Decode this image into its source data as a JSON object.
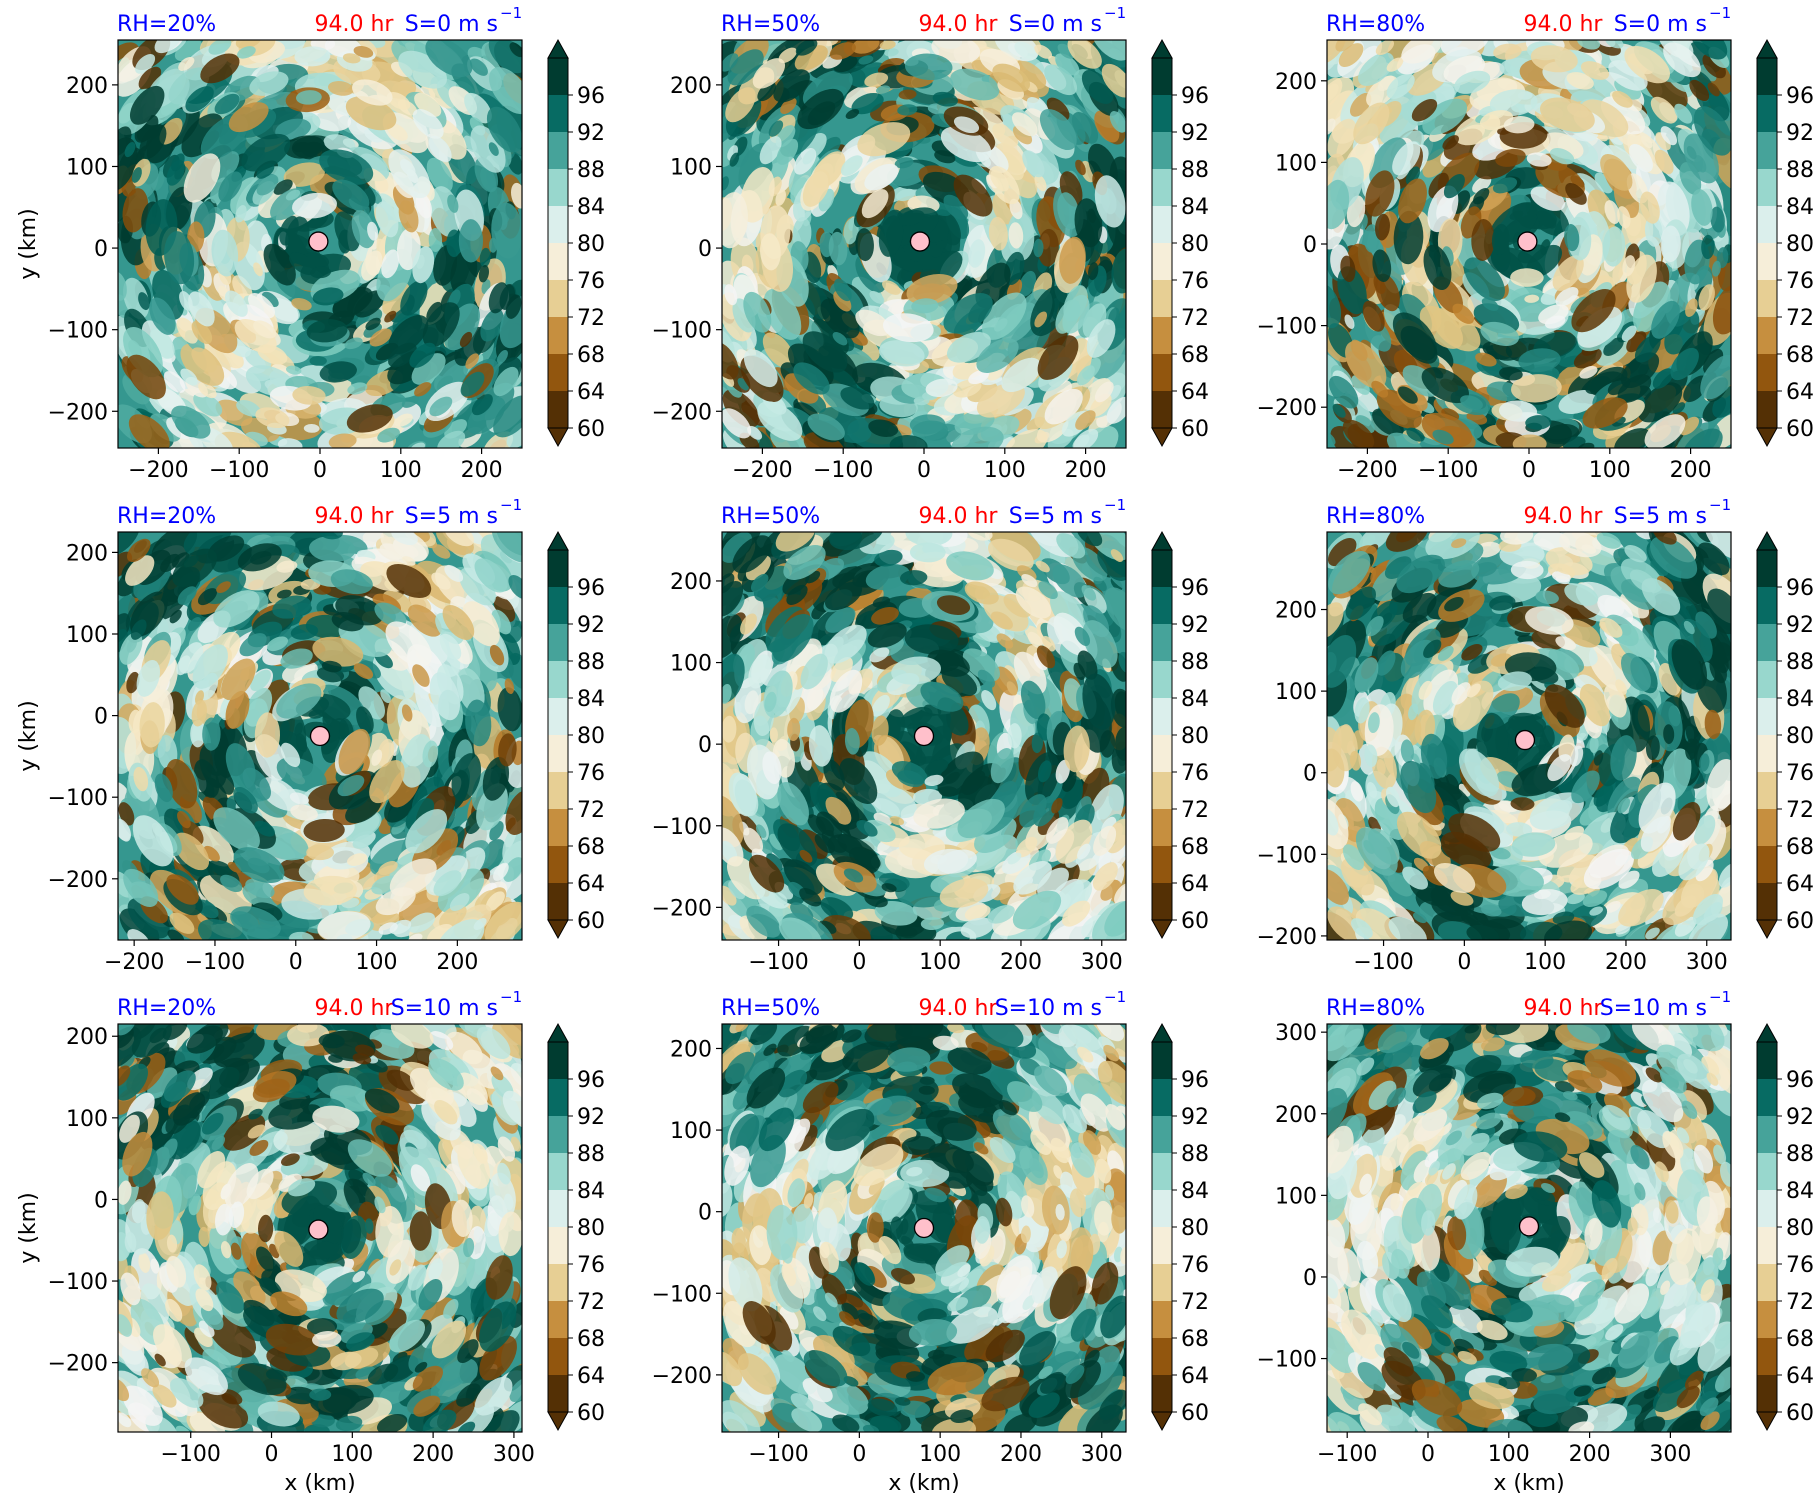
{
  "colors": {
    "title_left": "#0000ff",
    "title_center": "#ff0000",
    "title_right": "#0000ff",
    "center_marker": "#ffc0cb",
    "colormap": [
      "#543005",
      "#8c510a",
      "#bf812d",
      "#dfc27d",
      "#f6e8c3",
      "#f5f5f5",
      "#c7eae5",
      "#80cdc1",
      "#35978f",
      "#01665e",
      "#003c30"
    ]
  },
  "chart_data": [
    {
      "type": "heatmap",
      "title_left": "RH=20%",
      "title_center": "94.0 hr",
      "title_right": "S=0 m s",
      "title_right_sup": "−1",
      "xlabel": "",
      "ylabel": "y (km)",
      "xlim": [
        -250,
        250
      ],
      "ylim": [
        -245,
        255
      ],
      "xticks": [
        -200,
        -100,
        0,
        100,
        200
      ],
      "xtick_labels": [
        "−200",
        "−100",
        "0",
        "100",
        "200"
      ],
      "yticks": [
        -200,
        -100,
        0,
        100,
        200
      ],
      "ytick_labels": [
        "−200",
        "−100",
        "0",
        "100",
        "200"
      ],
      "center": [
        -2,
        8
      ],
      "colorbar": {
        "ticks": [
          "60",
          "64",
          "68",
          "72",
          "76",
          "80",
          "84",
          "88",
          "92",
          "96"
        ],
        "range": [
          60,
          100
        ],
        "extend": "both"
      }
    },
    {
      "type": "heatmap",
      "title_left": "RH=50%",
      "title_center": "94.0 hr",
      "title_right": "S=0 m s",
      "title_right_sup": "−1",
      "xlabel": "",
      "ylabel": "",
      "xlim": [
        -250,
        250
      ],
      "ylim": [
        -245,
        255
      ],
      "xticks": [
        -200,
        -100,
        0,
        100,
        200
      ],
      "xtick_labels": [
        "−200",
        "−100",
        "0",
        "100",
        "200"
      ],
      "yticks": [
        -200,
        -100,
        0,
        100,
        200
      ],
      "ytick_labels": [
        "−200",
        "−100",
        "0",
        "100",
        "200"
      ],
      "center": [
        -5,
        8
      ],
      "colorbar": {
        "ticks": [
          "60",
          "64",
          "68",
          "72",
          "76",
          "80",
          "84",
          "88",
          "92",
          "96"
        ],
        "range": [
          60,
          100
        ],
        "extend": "both"
      }
    },
    {
      "type": "heatmap",
      "title_left": "RH=80%",
      "title_center": "94.0 hr",
      "title_right": "S=0 m s",
      "title_right_sup": "−1",
      "xlabel": "",
      "ylabel": "",
      "xlim": [
        -250,
        250
      ],
      "ylim": [
        -250,
        250
      ],
      "xticks": [
        -200,
        -100,
        0,
        100,
        200
      ],
      "xtick_labels": [
        "−200",
        "−100",
        "0",
        "100",
        "200"
      ],
      "yticks": [
        -200,
        -100,
        0,
        100,
        200
      ],
      "ytick_labels": [
        "−200",
        "−100",
        "0",
        "100",
        "200"
      ],
      "center": [
        -2,
        3
      ],
      "colorbar": {
        "ticks": [
          "60",
          "64",
          "68",
          "72",
          "76",
          "80",
          "84",
          "88",
          "92",
          "96"
        ],
        "range": [
          60,
          100
        ],
        "extend": "both"
      }
    },
    {
      "type": "heatmap",
      "title_left": "RH=20%",
      "title_center": "94.0 hr",
      "title_right": "S=5 m s",
      "title_right_sup": "−1",
      "xlabel": "",
      "ylabel": "y (km)",
      "xlim": [
        -220,
        280
      ],
      "ylim": [
        -275,
        225
      ],
      "xticks": [
        -200,
        -100,
        0,
        100,
        200
      ],
      "xtick_labels": [
        "−200",
        "−100",
        "0",
        "100",
        "200"
      ],
      "yticks": [
        -200,
        -100,
        0,
        100,
        200
      ],
      "ytick_labels": [
        "−200",
        "−100",
        "0",
        "100",
        "200"
      ],
      "center": [
        30,
        -25
      ],
      "colorbar": {
        "ticks": [
          "60",
          "64",
          "68",
          "72",
          "76",
          "80",
          "84",
          "88",
          "92",
          "96"
        ],
        "range": [
          60,
          100
        ],
        "extend": "both"
      }
    },
    {
      "type": "heatmap",
      "title_left": "RH=50%",
      "title_center": "94.0 hr",
      "title_right": "S=5 m s",
      "title_right_sup": "−1",
      "xlabel": "",
      "ylabel": "",
      "xlim": [
        -170,
        330
      ],
      "ylim": [
        -240,
        260
      ],
      "xticks": [
        -100,
        0,
        100,
        200,
        300
      ],
      "xtick_labels": [
        "−100",
        "0",
        "100",
        "200",
        "300"
      ],
      "yticks": [
        -200,
        -100,
        0,
        100,
        200
      ],
      "ytick_labels": [
        "−200",
        "−100",
        "0",
        "100",
        "200"
      ],
      "center": [
        80,
        10
      ],
      "colorbar": {
        "ticks": [
          "60",
          "64",
          "68",
          "72",
          "76",
          "80",
          "84",
          "88",
          "92",
          "96"
        ],
        "range": [
          60,
          100
        ],
        "extend": "both"
      }
    },
    {
      "type": "heatmap",
      "title_left": "RH=80%",
      "title_center": "94.0 hr",
      "title_right": "S=5 m s",
      "title_right_sup": "−1",
      "xlabel": "",
      "ylabel": "",
      "xlim": [
        -170,
        330
      ],
      "ylim": [
        -205,
        295
      ],
      "xticks": [
        -100,
        0,
        100,
        200,
        300
      ],
      "xtick_labels": [
        "−100",
        "0",
        "100",
        "200",
        "300"
      ],
      "yticks": [
        -200,
        -100,
        0,
        100,
        200
      ],
      "ytick_labels": [
        "−200",
        "−100",
        "0",
        "100",
        "200"
      ],
      "center": [
        75,
        40
      ],
      "colorbar": {
        "ticks": [
          "60",
          "64",
          "68",
          "72",
          "76",
          "80",
          "84",
          "88",
          "92",
          "96"
        ],
        "range": [
          60,
          100
        ],
        "extend": "both"
      }
    },
    {
      "type": "heatmap",
      "title_left": "RH=20%",
      "title_center": "94.0 hr",
      "title_right": "S=10 m s",
      "title_right_sup": "−1",
      "xlabel": "x (km)",
      "ylabel": "y (km)",
      "xlim": [
        -190,
        310
      ],
      "ylim": [
        -285,
        215
      ],
      "xticks": [
        -100,
        0,
        100,
        200,
        300
      ],
      "xtick_labels": [
        "−100",
        "0",
        "100",
        "200",
        "300"
      ],
      "yticks": [
        -200,
        -100,
        0,
        100,
        200
      ],
      "ytick_labels": [
        "−200",
        "−100",
        "0",
        "100",
        "200"
      ],
      "center": [
        58,
        -37
      ],
      "colorbar": {
        "ticks": [
          "60",
          "64",
          "68",
          "72",
          "76",
          "80",
          "84",
          "88",
          "92",
          "96"
        ],
        "range": [
          60,
          100
        ],
        "extend": "both"
      }
    },
    {
      "type": "heatmap",
      "title_left": "RH=50%",
      "title_center": "94.0 hr",
      "title_right": "S=10 m s",
      "title_right_sup": "−1",
      "xlabel": "x (km)",
      "ylabel": "",
      "xlim": [
        -170,
        330
      ],
      "ylim": [
        -270,
        230
      ],
      "xticks": [
        -100,
        0,
        100,
        200,
        300
      ],
      "xtick_labels": [
        "−100",
        "0",
        "100",
        "200",
        "300"
      ],
      "yticks": [
        -200,
        -100,
        0,
        100,
        200
      ],
      "ytick_labels": [
        "−200",
        "−100",
        "0",
        "100",
        "200"
      ],
      "center": [
        80,
        -20
      ],
      "colorbar": {
        "ticks": [
          "60",
          "64",
          "68",
          "72",
          "76",
          "80",
          "84",
          "88",
          "92",
          "96"
        ],
        "range": [
          60,
          100
        ],
        "extend": "both"
      }
    },
    {
      "type": "heatmap",
      "title_left": "RH=80%",
      "title_center": "94.0 hr",
      "title_right": "S=10 m s",
      "title_right_sup": "−1",
      "xlabel": "x (km)",
      "ylabel": "",
      "xlim": [
        -125,
        375
      ],
      "ylim": [
        -190,
        310
      ],
      "xticks": [
        -100,
        0,
        100,
        200,
        300
      ],
      "xtick_labels": [
        "−100",
        "0",
        "100",
        "200",
        "300"
      ],
      "yticks": [
        -100,
        0,
        100,
        200,
        300
      ],
      "ytick_labels": [
        "−100",
        "0",
        "100",
        "200",
        "300"
      ],
      "center": [
        125,
        62
      ],
      "colorbar": {
        "ticks": [
          "60",
          "64",
          "68",
          "72",
          "76",
          "80",
          "84",
          "88",
          "92",
          "96"
        ],
        "range": [
          60,
          100
        ],
        "extend": "both"
      }
    }
  ]
}
